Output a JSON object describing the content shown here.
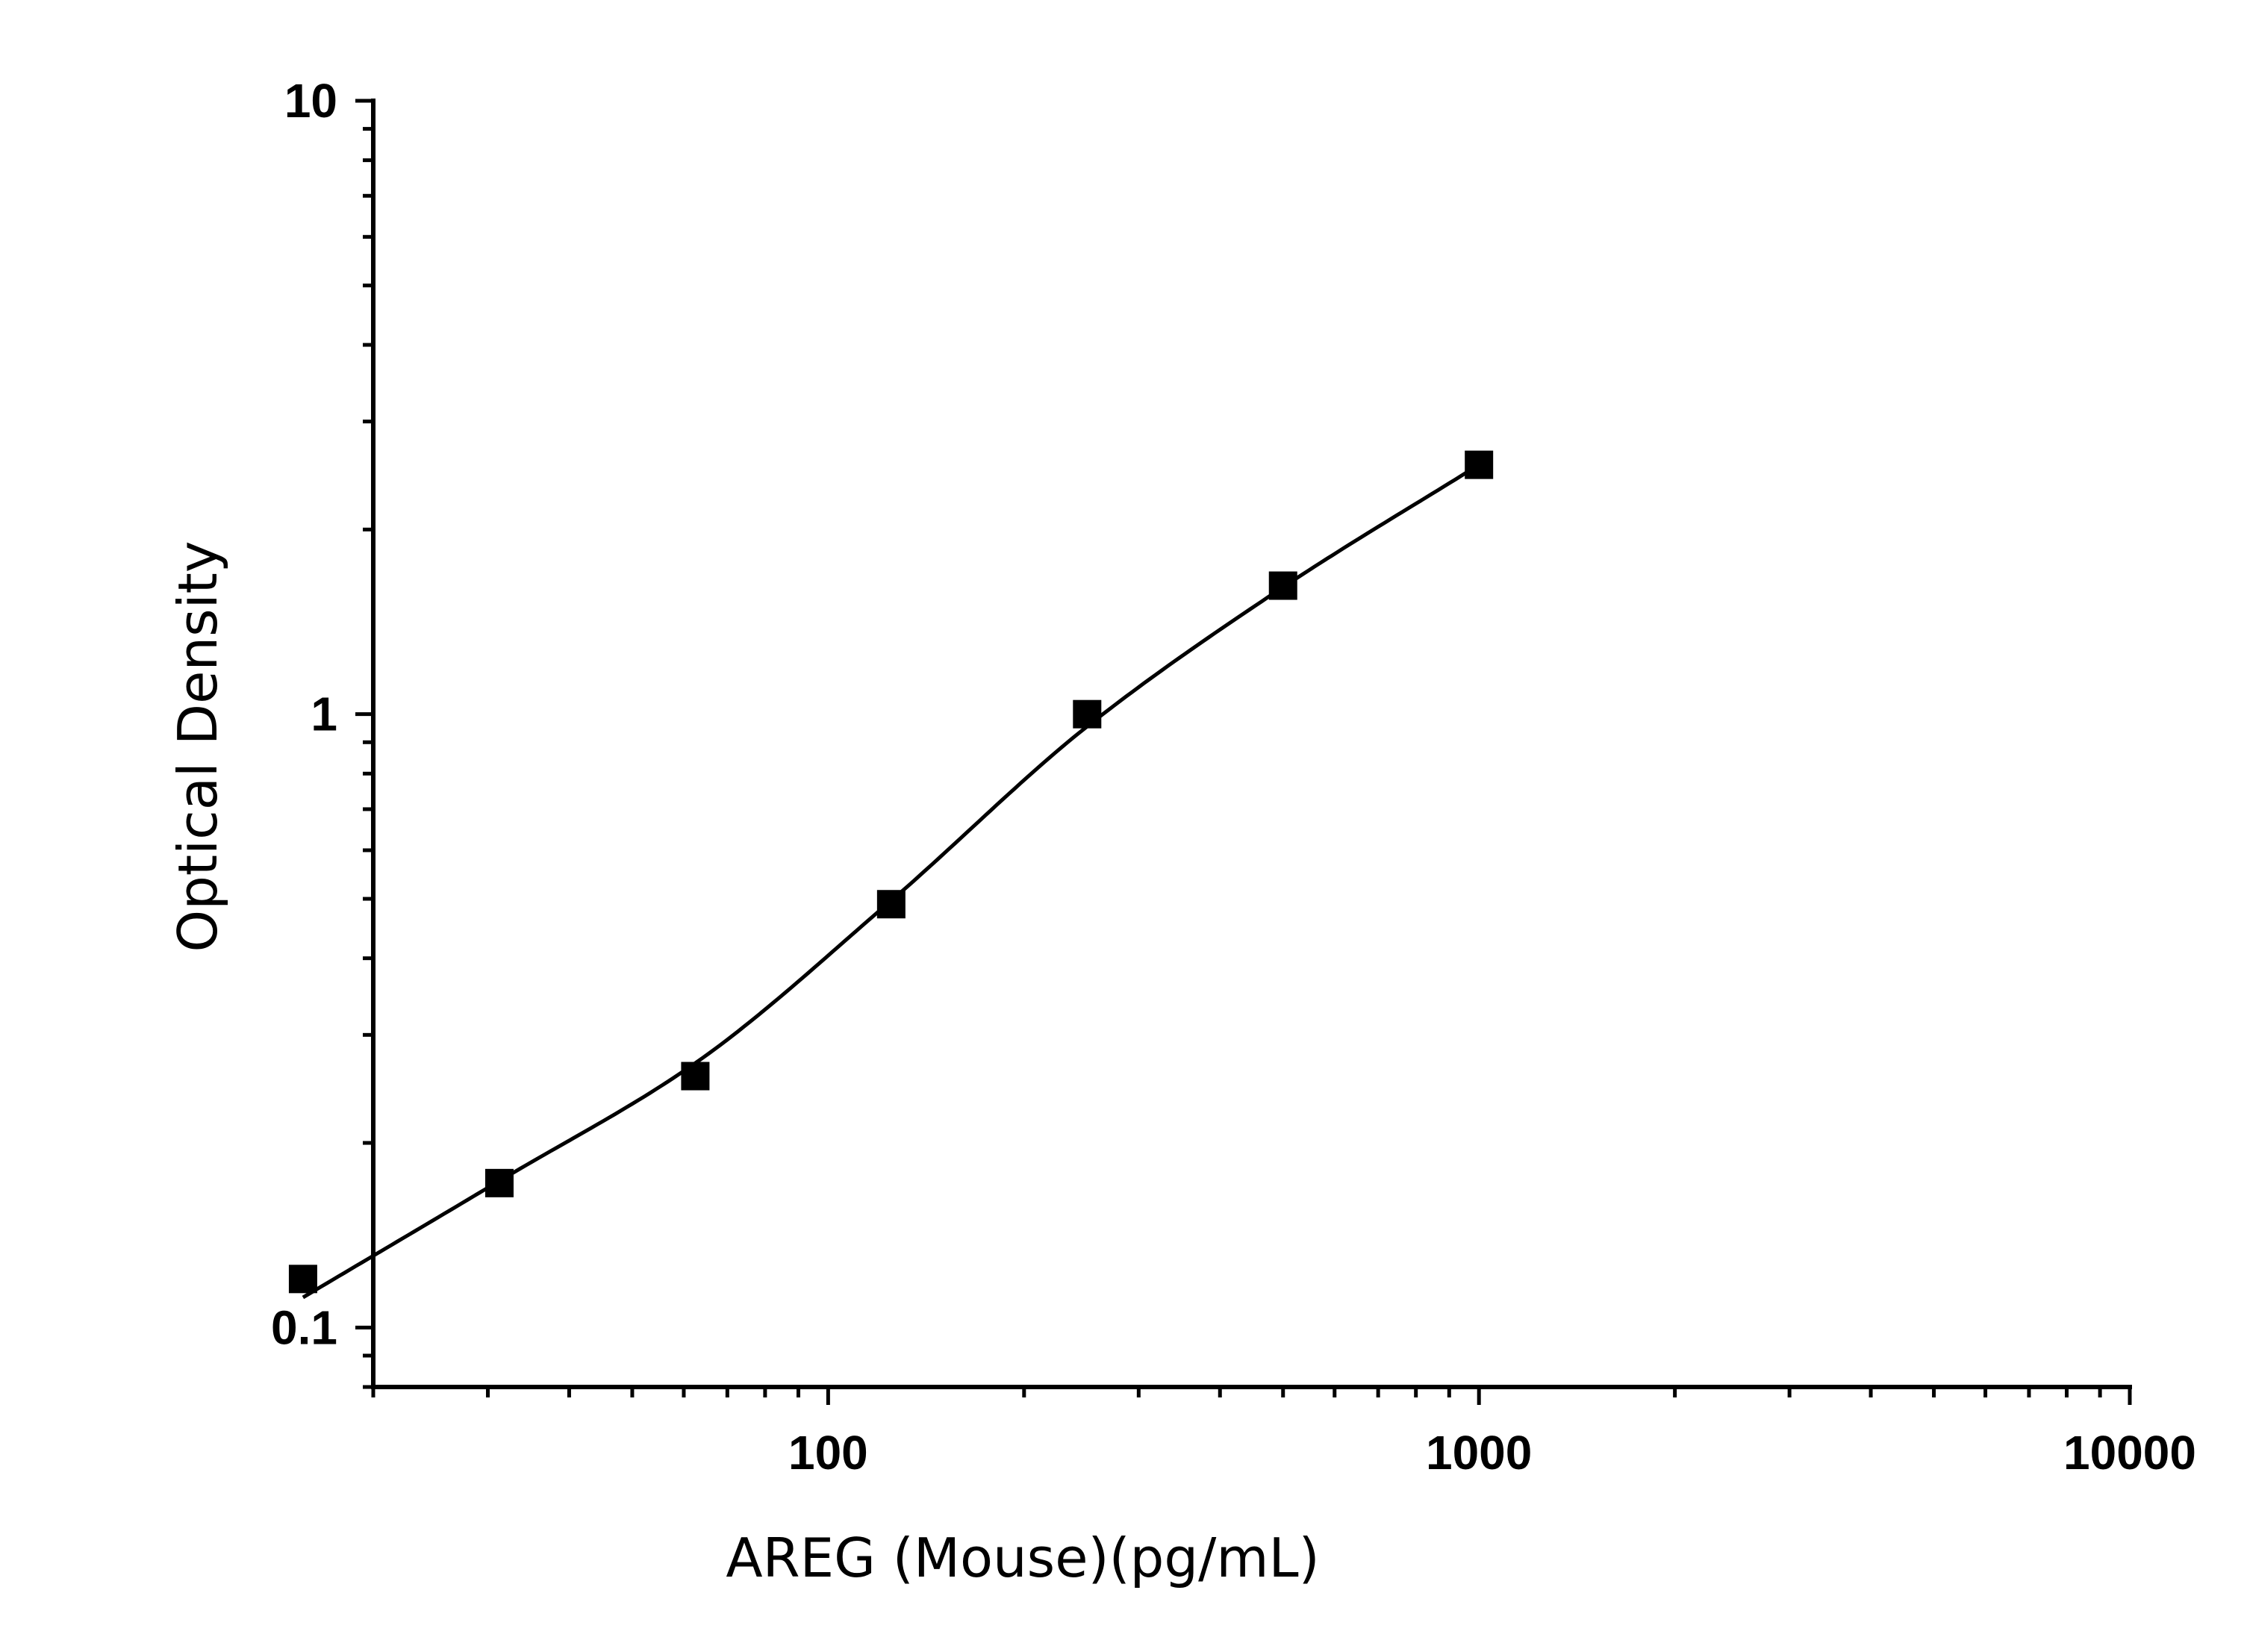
{
  "chart_data": {
    "type": "scatter",
    "title": "",
    "xlabel": "AREG (Mouse)(pg/mL)",
    "ylabel": "Optical Density",
    "x_scale": "log",
    "y_scale": "log",
    "xlim": [
      20,
      10000
    ],
    "ylim": [
      0.08,
      10
    ],
    "x_ticks": [
      {
        "value": 100,
        "label": "100"
      },
      {
        "value": 1000,
        "label": "1000"
      },
      {
        "value": 10000,
        "label": "10000"
      }
    ],
    "y_ticks": [
      {
        "value": 0.1,
        "label": "0.1"
      },
      {
        "value": 1,
        "label": "1"
      },
      {
        "value": 10,
        "label": "10"
      }
    ],
    "grid": false,
    "legend": "none",
    "series": [
      {
        "kind": "points",
        "marker": "square",
        "color": "#000000",
        "x": [
          15.6,
          31.25,
          62.5,
          125,
          250,
          500,
          1000
        ],
        "y": [
          0.12,
          0.172,
          0.257,
          0.49,
          1.0,
          1.62,
          2.55
        ]
      },
      {
        "kind": "fit-curve",
        "color": "#000000",
        "x_range": [
          15.6,
          1000
        ]
      }
    ]
  }
}
